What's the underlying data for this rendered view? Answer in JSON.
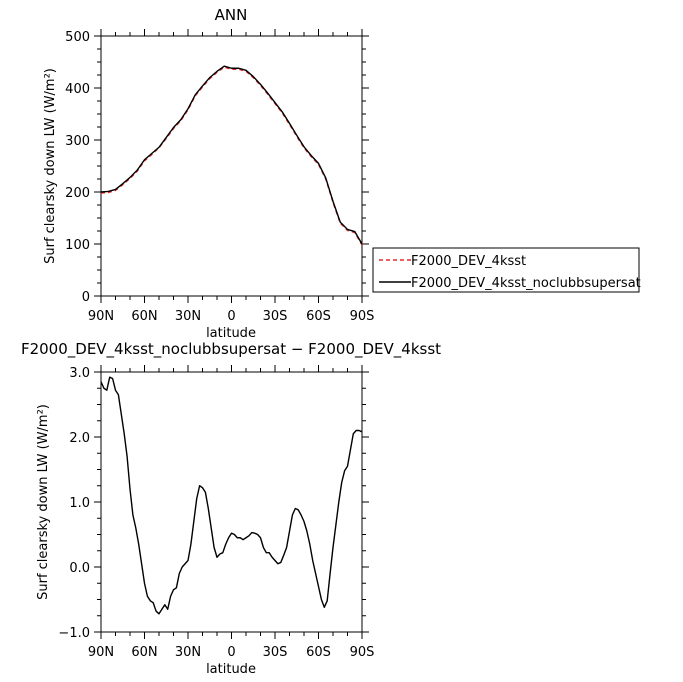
{
  "chart_data": [
    {
      "type": "line",
      "title": "ANN",
      "xlabel": "latitude",
      "ylabel": "Surf clearsky down LW (W/m²)",
      "x_ticks": [
        {
          "value": 90,
          "label": "90N"
        },
        {
          "value": 60,
          "label": "60N"
        },
        {
          "value": 30,
          "label": "30N"
        },
        {
          "value": 0,
          "label": "0"
        },
        {
          "value": -30,
          "label": "30S"
        },
        {
          "value": -60,
          "label": "60S"
        },
        {
          "value": -90,
          "label": "90S"
        }
      ],
      "xlim": [
        90,
        -90
      ],
      "ylim": [
        0,
        500
      ],
      "y_ticks": [
        {
          "value": 0,
          "label": "0"
        },
        {
          "value": 100,
          "label": "100"
        },
        {
          "value": 200,
          "label": "200"
        },
        {
          "value": 300,
          "label": "300"
        },
        {
          "value": 400,
          "label": "400"
        },
        {
          "value": 500,
          "label": "500"
        }
      ],
      "legend": {
        "placement": "right",
        "entries": [
          {
            "name": "F2000_DEV_4ksst",
            "color": "#e8282b",
            "dash": "dashed"
          },
          {
            "name": "F2000_DEV_4ksst_noclubbsupersat",
            "color": "#000000",
            "dash": "solid"
          }
        ]
      },
      "series": [
        {
          "name": "F2000_DEV_4ksst",
          "color": "#e8282b",
          "x": [
            90,
            85,
            80,
            75,
            70,
            65,
            60,
            55,
            50,
            45,
            40,
            35,
            30,
            25,
            20,
            15,
            10,
            5,
            0,
            -5,
            -10,
            -15,
            -20,
            -25,
            -30,
            -35,
            -40,
            -45,
            -50,
            -55,
            -60,
            -65,
            -70,
            -75,
            -80,
            -85,
            -90
          ],
          "y": [
            198,
            199,
            203,
            214,
            226,
            240,
            260,
            272,
            285,
            303,
            322,
            337,
            358,
            385,
            402,
            418,
            430,
            440,
            436,
            436,
            432,
            420,
            405,
            388,
            370,
            352,
            330,
            307,
            285,
            268,
            253,
            225,
            180,
            140,
            126,
            122,
            98
          ]
        },
        {
          "name": "F2000_DEV_4ksst_noclubbsupersat",
          "color": "#000000",
          "x": [
            90,
            85,
            80,
            75,
            70,
            65,
            60,
            55,
            50,
            45,
            40,
            35,
            30,
            25,
            20,
            15,
            10,
            5,
            0,
            -5,
            -10,
            -15,
            -20,
            -25,
            -30,
            -35,
            -40,
            -45,
            -50,
            -55,
            -60,
            -65,
            -70,
            -75,
            -80,
            -85,
            -90
          ],
          "y": [
            200,
            201,
            205,
            216,
            228,
            242,
            262,
            274,
            286,
            305,
            324,
            339,
            360,
            387,
            404,
            420,
            432,
            442,
            438,
            438,
            434,
            422,
            407,
            390,
            372,
            354,
            332,
            309,
            287,
            270,
            255,
            227,
            182,
            142,
            128,
            124,
            100
          ]
        }
      ]
    },
    {
      "type": "line",
      "title": "F2000_DEV_4ksst_noclubbsupersat − F2000_DEV_4ksst",
      "xlabel": "latitude",
      "ylabel": "Surf clearsky down LW (W/m²)",
      "x_ticks": [
        {
          "value": 90,
          "label": "90N"
        },
        {
          "value": 60,
          "label": "60N"
        },
        {
          "value": 30,
          "label": "30N"
        },
        {
          "value": 0,
          "label": "0"
        },
        {
          "value": -30,
          "label": "30S"
        },
        {
          "value": -60,
          "label": "60S"
        },
        {
          "value": -90,
          "label": "90S"
        }
      ],
      "xlim": [
        90,
        -90
      ],
      "ylim": [
        -1.0,
        3.0
      ],
      "y_ticks": [
        {
          "value": -1.0,
          "label": "−1.0"
        },
        {
          "value": 0.0,
          "label": "0.0"
        },
        {
          "value": 1.0,
          "label": "1.0"
        },
        {
          "value": 2.0,
          "label": "2.0"
        },
        {
          "value": 3.0,
          "label": "3.0"
        }
      ],
      "series": [
        {
          "color": "#000000",
          "x": [
            90,
            88,
            86,
            84,
            82,
            80,
            78,
            76,
            74,
            72,
            70,
            68,
            66,
            64,
            62,
            60,
            58,
            56,
            54,
            52,
            50,
            48,
            46,
            44,
            42,
            40,
            38,
            36,
            34,
            32,
            30,
            28,
            26,
            24,
            22,
            20,
            18,
            16,
            14,
            12,
            10,
            8,
            6,
            4,
            2,
            0,
            -2,
            -4,
            -6,
            -8,
            -10,
            -12,
            -14,
            -16,
            -18,
            -20,
            -22,
            -24,
            -26,
            -28,
            -30,
            -32,
            -34,
            -36,
            -38,
            -40,
            -42,
            -44,
            -46,
            -48,
            -50,
            -52,
            -54,
            -56,
            -58,
            -60,
            -62,
            -64,
            -66,
            -68,
            -70,
            -72,
            -74,
            -76,
            -78,
            -80,
            -82,
            -84,
            -86,
            -88,
            -90
          ],
          "y": [
            2.85,
            2.75,
            2.72,
            2.92,
            2.9,
            2.72,
            2.65,
            2.35,
            2.05,
            1.7,
            1.2,
            0.8,
            0.6,
            0.35,
            0.05,
            -0.25,
            -0.45,
            -0.52,
            -0.55,
            -0.68,
            -0.72,
            -0.65,
            -0.58,
            -0.65,
            -0.45,
            -0.35,
            -0.32,
            -0.1,
            0.0,
            0.05,
            0.1,
            0.35,
            0.7,
            1.05,
            1.25,
            1.22,
            1.15,
            0.9,
            0.6,
            0.3,
            0.15,
            0.2,
            0.22,
            0.35,
            0.45,
            0.52,
            0.5,
            0.45,
            0.45,
            0.42,
            0.45,
            0.48,
            0.53,
            0.52,
            0.5,
            0.45,
            0.3,
            0.22,
            0.22,
            0.15,
            0.1,
            0.05,
            0.07,
            0.18,
            0.3,
            0.55,
            0.8,
            0.9,
            0.88,
            0.8,
            0.7,
            0.55,
            0.35,
            0.1,
            -0.1,
            -0.3,
            -0.5,
            -0.62,
            -0.52,
            -0.1,
            0.3,
            0.65,
            1.0,
            1.3,
            1.48,
            1.55,
            1.8,
            2.05,
            2.1,
            2.1,
            2.08
          ]
        }
      ]
    }
  ]
}
